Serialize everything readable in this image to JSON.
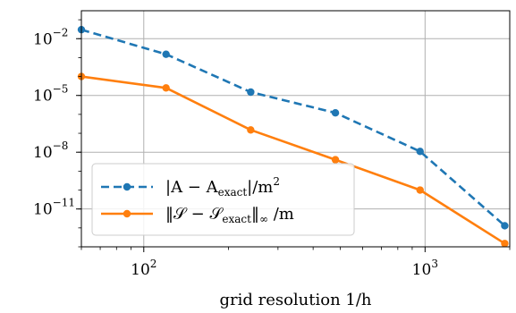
{
  "chart_data": {
    "type": "line",
    "title": "",
    "xlabel": "grid resolution 1/h",
    "ylabel": "",
    "xscale": "log",
    "yscale": "log",
    "xlim": [
      60,
      2000
    ],
    "ylim": [
      1e-13,
      0.3
    ],
    "grid": true,
    "legend_position": "lower-left",
    "x_ticks": [
      {
        "value": 100,
        "base": "10",
        "exp": "2"
      },
      {
        "value": 1000,
        "base": "10",
        "exp": "3"
      }
    ],
    "y_ticks": [
      {
        "value": 0.01,
        "base": "10",
        "exp": "−2"
      },
      {
        "value": 1e-05,
        "base": "10",
        "exp": "−5"
      },
      {
        "value": 1e-08,
        "base": "10",
        "exp": "−8"
      },
      {
        "value": 1e-11,
        "base": "10",
        "exp": "−11"
      }
    ],
    "series": [
      {
        "name": "|A − A_exact|/m²",
        "legend": {
          "pre": "|A − A",
          "sub": "exact",
          "post": "|/m",
          "sup": "2"
        },
        "color": "#1f77b4",
        "dash": true,
        "x": [
          60,
          120,
          240,
          480,
          960,
          1920
        ],
        "y": [
          0.03,
          0.0015,
          1.5e-05,
          1.2e-06,
          1.1e-08,
          1.3e-12
        ]
      },
      {
        "name": "‖S − S_exact‖∞ /m",
        "legend": {
          "pre": "‖𝒮 − 𝒮",
          "sub": "exact",
          "post": "‖",
          "sub2": "∞",
          "post2": " /m"
        },
        "color": "#ff7f0e",
        "dash": false,
        "x": [
          60,
          120,
          240,
          480,
          960,
          1920
        ],
        "y": [
          0.0001,
          2.5e-05,
          1.5e-07,
          4e-09,
          1e-10,
          1.5e-13
        ]
      }
    ]
  }
}
